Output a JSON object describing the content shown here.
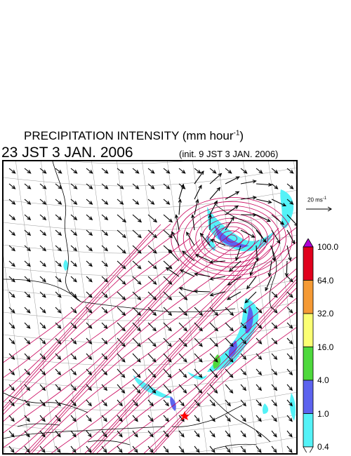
{
  "title": {
    "main": "PRECIPITATION INTENSITY (mm hour",
    "unit_exp": "-1",
    "close": ")"
  },
  "timestamp": "23 JST 3 JAN. 2006",
  "init": "(init. 9 JST 3 JAN. 2006)",
  "reference_vector": {
    "label": "20 ms",
    "exp": "-1"
  },
  "colorbar": {
    "levels": [
      "100.0",
      "64.0",
      "32.0",
      "16.0",
      "4.0",
      "1.0",
      "0.4"
    ],
    "colors": [
      "#e0001c",
      "#f59a34",
      "#fbff73",
      "#4ed93c",
      "#5c63ee",
      "#54f2f7"
    ],
    "over_color": "#b000d6",
    "under_color": "#ffffff"
  },
  "colors": {
    "isobar": "#c8005a",
    "coast": "#000000",
    "grid": "#9a9a9a",
    "marker": "#ff0000"
  },
  "markers": [
    {
      "name": "star",
      "icon": "red-star-icon"
    }
  ]
}
